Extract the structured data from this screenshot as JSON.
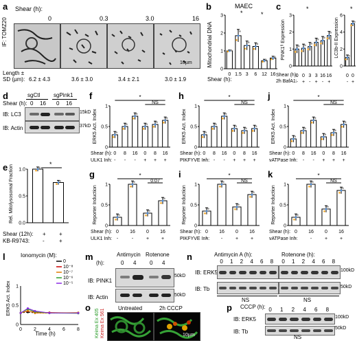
{
  "a": {
    "label": "a",
    "shear_title": "Shear (h):",
    "times": [
      "0",
      "0.3",
      "3.0",
      "16"
    ],
    "stain": "IF: TOMZ20",
    "length_label": "Length ±",
    "sd_label": "SD (µm):",
    "lengths": [
      "6.2 ± 4.3",
      "3.6 ± 3.0",
      "3.4 ± 2.1",
      "3.0 ± 1.9"
    ],
    "scale": "10µm"
  },
  "b": {
    "label": "b",
    "title": "MAEC",
    "ylabel": "Mitochondrial DNA",
    "xlabel": "Shear (h):",
    "stars": [
      "*",
      "*"
    ],
    "chart_data": {
      "type": "bar",
      "categories": [
        "0",
        "1.5",
        "3",
        "6",
        "12",
        "16"
      ],
      "values": [
        1.0,
        1.85,
        1.3,
        1.25,
        0.45,
        0.6
      ],
      "errors": [
        0.05,
        0.35,
        0.25,
        0.2,
        0.08,
        0.1
      ],
      "ylim": [
        0,
        3
      ],
      "yticks": [
        "0",
        "1",
        "2",
        "3"
      ]
    }
  },
  "c": {
    "label": "c",
    "ylabel_left": "PINK1ᶠˡ Expression",
    "ylabel_right": "LC3b-II Expression",
    "shear_label": "Shear (h):",
    "bafa_label": "2h BafA1:",
    "shear_vals": [
      "0",
      "0",
      "3",
      "3",
      "16",
      "16"
    ],
    "bafa_vals": [
      "-",
      "+",
      "-",
      "+",
      "-",
      "+"
    ],
    "right_shear": [
      "0",
      "0"
    ],
    "right_bafa": [
      "-",
      "+"
    ],
    "star": "*",
    "chart_data": {
      "type": "bar",
      "categories": [
        "0 -",
        "0 +",
        "3 -",
        "3 +",
        "16 -",
        "16 +"
      ],
      "values": [
        1.0,
        1.05,
        1.15,
        1.4,
        1.5,
        1.8
      ],
      "ylim": [
        0,
        3
      ],
      "yticks": [
        "0",
        "1",
        "2",
        "3"
      ],
      "right": {
        "values": [
          1.0,
          5.0
        ],
        "ylim": [
          0,
          6
        ],
        "yticks": [
          "0",
          "2",
          "4",
          "6"
        ]
      }
    }
  },
  "d": {
    "label": "d",
    "groups": [
      "sgCtl",
      "sgPink1"
    ],
    "shear_label": "Shear (h):",
    "times": [
      "0",
      "16",
      "0",
      "16"
    ],
    "ib1": "IB: LC3",
    "ib2": "IB: Actin",
    "mw1": "15kD",
    "mw2": "37kD"
  },
  "e": {
    "label": "e",
    "ylabel": "Rel. Mitolysosomal Fraction",
    "row1": "Shear (12h):",
    "row2": "KB-R9743:",
    "row1_vals": [
      "+",
      "+"
    ],
    "row2_vals": [
      "-",
      "+"
    ],
    "star": "*",
    "chart_data": {
      "type": "bar",
      "categories": [
        "Shear",
        "Shear + KB-R9743"
      ],
      "values": [
        1.0,
        0.75
      ],
      "ylim": [
        0,
        1
      ],
      "yticks": [
        "0.0",
        "0.5",
        "1.0"
      ]
    }
  },
  "f": {
    "label": "f",
    "ylabel": "ERK5 Act. Index",
    "inh": "ULK1 Inh:",
    "ns": "NS",
    "star": "*",
    "shear": [
      "0",
      "8",
      "16",
      "0",
      "8",
      "16"
    ],
    "inh_vals": [
      "-",
      "-",
      "-",
      "+",
      "+",
      "+"
    ],
    "chart_data": {
      "type": "bar",
      "values": [
        0.3,
        0.5,
        0.75,
        0.5,
        0.55,
        0.65
      ],
      "ylim": [
        0,
        1
      ],
      "yticks": [
        "0",
        "0.5",
        "1"
      ]
    }
  },
  "g": {
    "label": "g",
    "ylabel": "Reporter Induction",
    "inh": "ULK1 Inh:",
    "ns": "NS",
    "pval": "0.07",
    "shear": [
      "0",
      "16",
      "0",
      "16"
    ],
    "inh_vals": [
      "-",
      "-",
      "+",
      "+"
    ],
    "chart_data": {
      "type": "bar",
      "values": [
        0.2,
        1.0,
        0.3,
        0.6
      ],
      "ylim": [
        0,
        1
      ],
      "yticks": [
        "0",
        "0.5",
        "1"
      ]
    }
  },
  "h": {
    "label": "h",
    "ylabel": "ERK5 Act. Index",
    "inh": "PIKFYVE Inh:",
    "ns": "NS",
    "star": "*",
    "shear": [
      "0",
      "8",
      "16",
      "0",
      "8",
      "16"
    ],
    "inh_vals": [
      "-",
      "-",
      "-",
      "+",
      "+",
      "+"
    ],
    "chart_data": {
      "type": "bar",
      "values": [
        0.3,
        0.5,
        0.75,
        0.45,
        0.4,
        0.45
      ],
      "ylim": [
        0,
        1
      ],
      "yticks": [
        "0",
        "0.5",
        "1"
      ]
    }
  },
  "i": {
    "label": "i",
    "ylabel": "Reporter Induction",
    "inh": "PIKFYVE Inh:",
    "ns": "NS",
    "star": "*",
    "shear": [
      "0",
      "16",
      "0",
      "16"
    ],
    "inh_vals": [
      "-",
      "-",
      "+",
      "+"
    ],
    "chart_data": {
      "type": "bar",
      "values": [
        0.35,
        1.0,
        0.45,
        0.75
      ],
      "ylim": [
        0,
        1
      ],
      "yticks": [
        "0",
        "0.5",
        "1"
      ]
    }
  },
  "j": {
    "label": "j",
    "ylabel": "ERK5 Act. Index",
    "inh": "vATPase Inh:",
    "ns": "NS",
    "star": "*",
    "shear": [
      "0",
      "8",
      "16",
      "0",
      "8",
      "16"
    ],
    "inh_vals": [
      "-",
      "-",
      "-",
      "+",
      "+",
      "+"
    ],
    "chart_data": {
      "type": "bar",
      "values": [
        0.2,
        0.4,
        0.65,
        0.25,
        0.35,
        0.55
      ],
      "ylim": [
        0,
        1
      ],
      "yticks": [
        "0",
        "0.5",
        "1"
      ]
    }
  },
  "k": {
    "label": "k",
    "ylabel": "Reporter Induction",
    "inh": "vATPase Inh:",
    "ns": "NS",
    "star": "*",
    "shear": [
      "0",
      "16",
      "0",
      "16"
    ],
    "inh_vals": [
      "-",
      "-",
      "+",
      "+"
    ],
    "chart_data": {
      "type": "bar",
      "values": [
        0.2,
        1.0,
        0.4,
        0.85
      ],
      "ylim": [
        0,
        1
      ],
      "yticks": [
        "0",
        "0.5",
        "1"
      ]
    }
  },
  "l": {
    "label": "l",
    "title": "Ionomycin (M):",
    "ylabel": "ERK5 Act. Index",
    "xlabel": "Time (h)",
    "legend": [
      "0",
      "10⁻⁸",
      "10⁻⁷",
      "10⁻⁶",
      "10⁻⁵"
    ],
    "colors": [
      "#000000",
      "#cc0000",
      "#e07b00",
      "#2ca02c",
      "#8a2be2"
    ],
    "chart_data": {
      "type": "line",
      "x": [
        0,
        1,
        2,
        4,
        8
      ],
      "series": [
        {
          "name": "0",
          "values": [
            0.3,
            0.32,
            0.3,
            0.3,
            0.3
          ]
        },
        {
          "name": "10⁻⁸",
          "values": [
            0.3,
            0.35,
            0.32,
            0.31,
            0.3
          ]
        },
        {
          "name": "10⁻⁷",
          "values": [
            0.3,
            0.36,
            0.3,
            0.3,
            0.31
          ]
        },
        {
          "name": "10⁻⁶",
          "values": [
            0.3,
            0.4,
            0.33,
            0.3,
            0.29
          ]
        },
        {
          "name": "10⁻⁵",
          "values": [
            0.3,
            0.42,
            0.35,
            0.3,
            0.3
          ]
        }
      ],
      "ylim": [
        0,
        1
      ],
      "yticks": [
        "0",
        "0.5",
        "1"
      ],
      "xticks": [
        "0",
        "2",
        "4",
        "6",
        "8"
      ]
    }
  },
  "m": {
    "label": "m",
    "h_label": "(h):",
    "cond": [
      "Antimycin",
      "Rotenone"
    ],
    "times": [
      "0",
      "4",
      "0",
      "4"
    ],
    "ib1": "IB: PINK1",
    "ib2": "IB: Actin",
    "mw1": "50kD",
    "mw2": "50kD"
  },
  "n": {
    "label": "n",
    "cond": [
      "Antimycin A (h):",
      "Rotenone (h):"
    ],
    "times": [
      "0",
      "1",
      "2",
      "4",
      "6",
      "8"
    ],
    "ib1": "IB: ERK5",
    "ib2": "IB: Tb",
    "mw1": "100kD",
    "mw2": "50kD",
    "ns": "NS"
  },
  "o": {
    "label": "o",
    "titles": [
      "Untreated",
      "2h CCCP"
    ],
    "side1": "Keima Ex 405",
    "side2": "Keima Ex 561",
    "scale": "10µm"
  },
  "p": {
    "label": "p",
    "cccp_label": "CCCP (h):",
    "times": [
      "0",
      "1",
      "2",
      "4",
      "6",
      "8"
    ],
    "ib1": "IB: ERK5",
    "ib2": "IB: Tb",
    "mw1": "100kD",
    "mw2": "50kD",
    "ns": "NS"
  }
}
